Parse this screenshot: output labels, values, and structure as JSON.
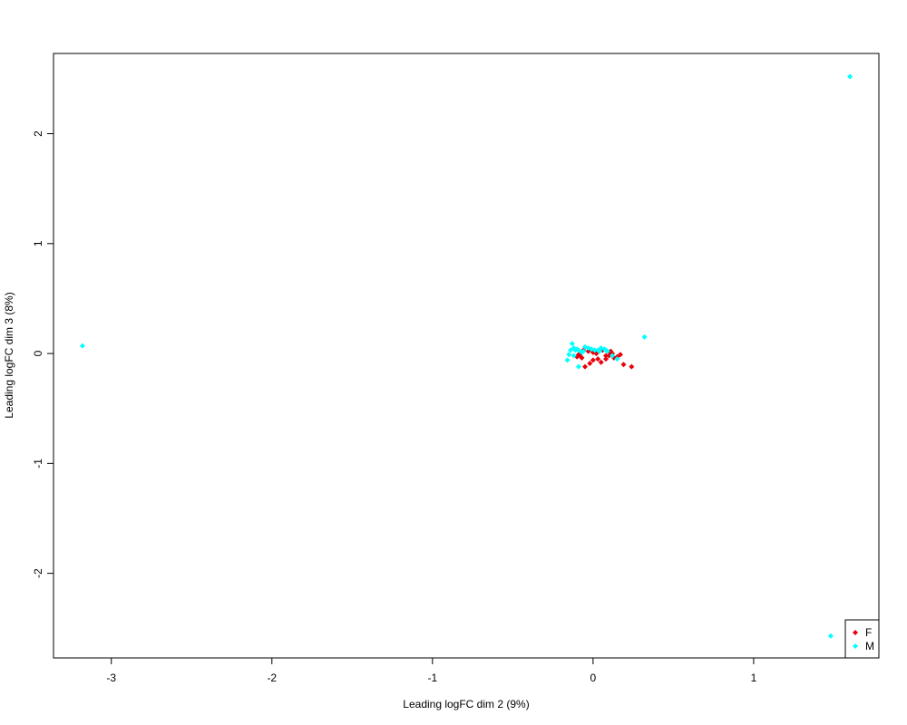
{
  "chart_data": {
    "type": "scatter",
    "title": "",
    "xlabel": "Leading logFC dim 2 (9%)",
    "ylabel": "Leading logFC dim 3 (8%)",
    "xlim": [
      -3.36,
      1.78
    ],
    "ylim": [
      -2.77,
      2.73
    ],
    "xticks": [
      -3,
      -2,
      -1,
      0,
      1
    ],
    "yticks": [
      -2,
      -1,
      0,
      1,
      2
    ],
    "grid": false,
    "legend_position": "bottom-right",
    "marker": "diamond",
    "series": [
      {
        "name": "F",
        "color": "#e8000b",
        "points": [
          [
            -0.08,
            -0.02
          ],
          [
            -0.1,
            -0.03
          ],
          [
            -0.07,
            -0.04
          ],
          [
            -0.05,
            -0.12
          ],
          [
            -0.02,
            -0.09
          ],
          [
            0.0,
            -0.06
          ],
          [
            0.03,
            -0.05
          ],
          [
            0.05,
            -0.08
          ],
          [
            0.08,
            -0.05
          ],
          [
            0.1,
            -0.02
          ],
          [
            0.12,
            0.0
          ],
          [
            0.15,
            -0.03
          ],
          [
            0.17,
            -0.01
          ],
          [
            0.19,
            -0.1
          ],
          [
            0.24,
            -0.12
          ],
          [
            -0.03,
            0.02
          ],
          [
            0.0,
            0.01
          ],
          [
            0.06,
            0.03
          ],
          [
            0.1,
            0.01
          ],
          [
            0.13,
            -0.04
          ],
          [
            -0.06,
            0.03
          ],
          [
            0.02,
            0.0
          ],
          [
            0.08,
            -0.02
          ],
          [
            -0.09,
            -0.01
          ],
          [
            0.11,
            0.02
          ]
        ]
      },
      {
        "name": "M",
        "color": "#00ffff",
        "points": [
          [
            -3.18,
            0.07
          ],
          [
            1.6,
            2.52
          ],
          [
            1.48,
            -2.57
          ],
          [
            0.32,
            0.15
          ],
          [
            -0.13,
            0.09
          ],
          [
            -0.12,
            0.05
          ],
          [
            -0.14,
            0.03
          ],
          [
            -0.15,
            -0.01
          ],
          [
            -0.16,
            -0.06
          ],
          [
            -0.11,
            0.03
          ],
          [
            -0.1,
            0.04
          ],
          [
            -0.09,
            0.03
          ],
          [
            -0.07,
            0.01
          ],
          [
            -0.05,
            0.06
          ],
          [
            -0.03,
            0.05
          ],
          [
            -0.01,
            0.04
          ],
          [
            0.01,
            0.03
          ],
          [
            0.03,
            0.03
          ],
          [
            0.05,
            0.05
          ],
          [
            0.07,
            0.04
          ],
          [
            0.09,
            0.02
          ],
          [
            0.12,
            -0.02
          ],
          [
            0.15,
            -0.05
          ],
          [
            -0.09,
            -0.12
          ],
          [
            -0.06,
            0.02
          ],
          [
            0.04,
            0.02
          ],
          [
            0.08,
            0.03
          ],
          [
            -0.12,
            -0.02
          ]
        ]
      }
    ]
  }
}
